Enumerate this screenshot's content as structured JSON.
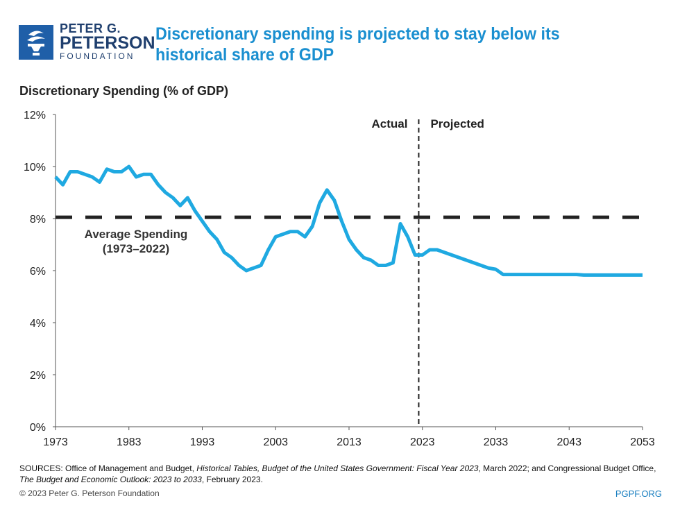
{
  "logo": {
    "line1": "PETER G.",
    "line2": "PETERSON",
    "line3": "FOUNDATION"
  },
  "title": "Discretionary spending is projected to stay below its historical share of GDP",
  "chart_data": {
    "type": "line",
    "ylabel": "Discretionary Spending (% of GDP)",
    "xlim": [
      1973,
      2053
    ],
    "ylim": [
      0,
      12
    ],
    "xticks": [
      "1973",
      "1983",
      "1993",
      "2003",
      "2013",
      "2023",
      "2033",
      "2043",
      "2053"
    ],
    "yticks": [
      "0%",
      "2%",
      "4%",
      "6%",
      "8%",
      "10%",
      "12%"
    ],
    "grid": false,
    "line_color": "#1fa9e1",
    "x": [
      1973,
      1974,
      1975,
      1976,
      1977,
      1978,
      1979,
      1980,
      1981,
      1982,
      1983,
      1984,
      1985,
      1986,
      1987,
      1988,
      1989,
      1990,
      1991,
      1992,
      1993,
      1994,
      1995,
      1996,
      1997,
      1998,
      1999,
      2000,
      2001,
      2002,
      2003,
      2004,
      2005,
      2006,
      2007,
      2008,
      2009,
      2010,
      2011,
      2012,
      2013,
      2014,
      2015,
      2016,
      2017,
      2018,
      2019,
      2020,
      2021,
      2022,
      2023,
      2024,
      2025,
      2026,
      2027,
      2028,
      2029,
      2030,
      2031,
      2032,
      2033,
      2034,
      2035,
      2036,
      2037,
      2038,
      2039,
      2040,
      2041,
      2042,
      2043,
      2044,
      2045,
      2046,
      2047,
      2048,
      2049,
      2050,
      2051,
      2052,
      2053
    ],
    "y": [
      9.6,
      9.3,
      9.8,
      9.8,
      9.7,
      9.6,
      9.4,
      9.9,
      9.8,
      9.8,
      10.0,
      9.6,
      9.7,
      9.7,
      9.3,
      9.0,
      8.8,
      8.5,
      8.8,
      8.3,
      7.9,
      7.5,
      7.2,
      6.7,
      6.5,
      6.2,
      6.0,
      6.1,
      6.2,
      6.8,
      7.3,
      7.4,
      7.5,
      7.5,
      7.3,
      7.7,
      8.6,
      9.1,
      8.7,
      7.9,
      7.2,
      6.8,
      6.5,
      6.4,
      6.2,
      6.2,
      6.3,
      7.8,
      7.3,
      6.6,
      6.6,
      6.8,
      6.8,
      6.7,
      6.6,
      6.5,
      6.4,
      6.3,
      6.2,
      6.1,
      6.05,
      5.85,
      5.85,
      5.85,
      5.85,
      5.85,
      5.85,
      5.85,
      5.85,
      5.85,
      5.85,
      5.85,
      5.83,
      5.83,
      5.83,
      5.83,
      5.83,
      5.83,
      5.83,
      5.83,
      5.83
    ],
    "average": {
      "value": 8.05,
      "label1": "Average Spending",
      "label2": "(1973–2022)"
    },
    "divider": {
      "year": 2022.5,
      "left_label": "Actual",
      "right_label": "Projected"
    }
  },
  "sources": {
    "text1": "SOURCES: Office of Management and Budget, ",
    "it1": "Historical Tables, Budget of the United States Government: Fiscal Year 2023",
    "text2": ", March 2022; and Congressional Budget Office, ",
    "it2": "The Budget and Economic Outlook: 2023 to 2033",
    "text3": ", February 2023."
  },
  "copyright": "© 2023 Peter G. Peterson Foundation",
  "site": "PGPF.ORG"
}
